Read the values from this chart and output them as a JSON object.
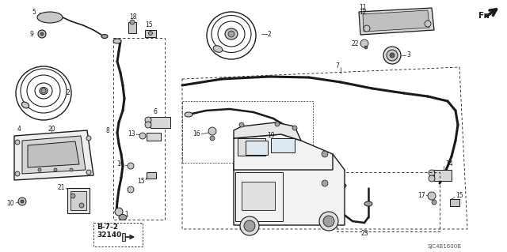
{
  "bg_color": "#ffffff",
  "dc": "#1a1a1a",
  "footer_left_line1": "B-7-2",
  "footer_left_line2": "32140",
  "footer_right": "SJC4B1600B",
  "gray_light": "#c8c8c8",
  "gray_mid": "#a0a0a0",
  "gray_dark": "#606060",
  "lw_main": 1.5,
  "lw_thin": 0.7,
  "lw_med": 1.0
}
